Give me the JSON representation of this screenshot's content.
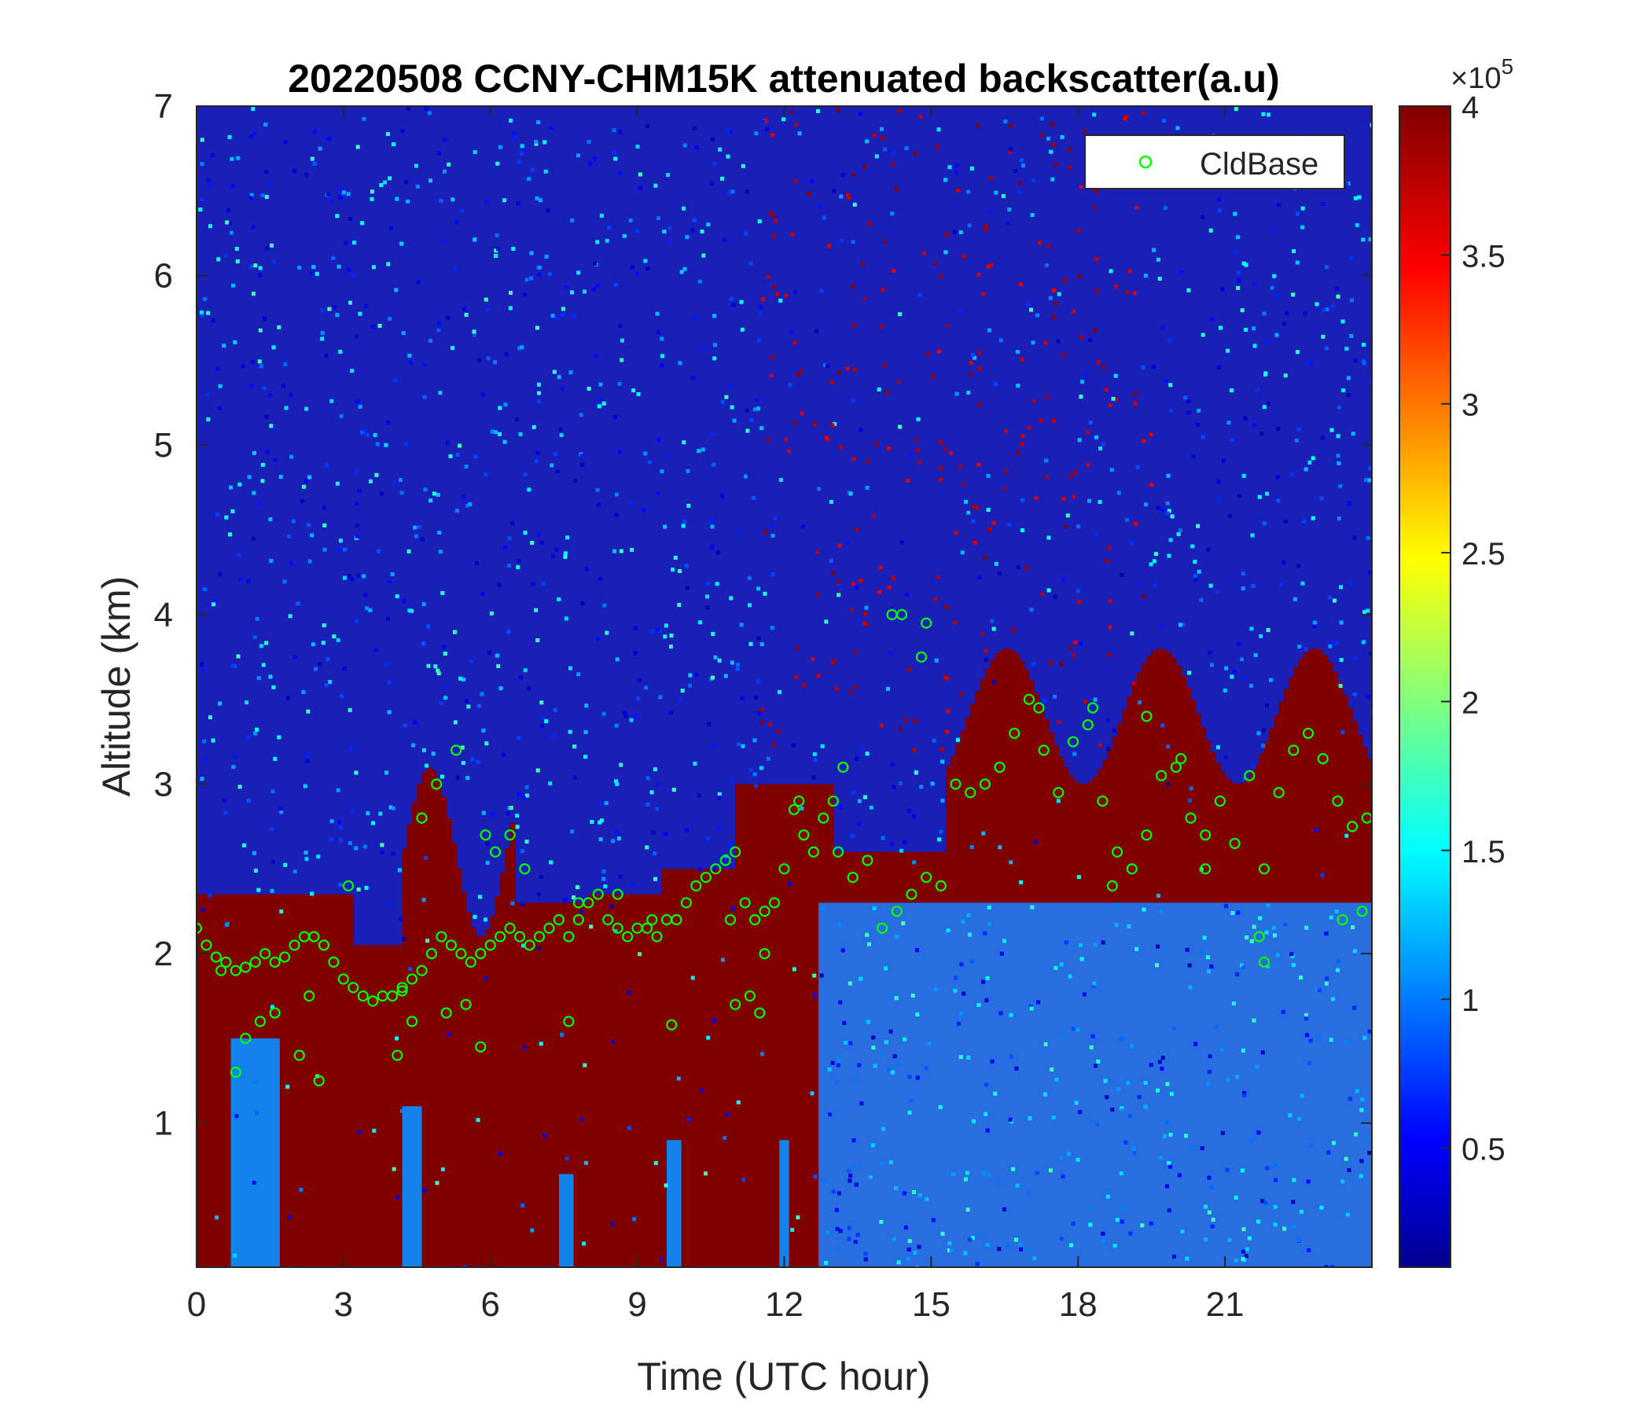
{
  "chart_data": {
    "type": "heatmap",
    "title": "20220508 CCNY-CHM15K attenuated backscatter(a.u)",
    "xlabel": "Time (UTC hour)",
    "ylabel": "Altitude (km)",
    "xlim": [
      0,
      24
    ],
    "ylim": [
      0.15,
      7
    ],
    "xticks": [
      0,
      3,
      6,
      9,
      12,
      15,
      18,
      21
    ],
    "yticks": [
      1,
      2,
      3,
      4,
      5,
      6,
      7
    ],
    "colorbar": {
      "colormap": "jet",
      "clim": [
        0.1,
        4
      ],
      "ticks": [
        0.5,
        1,
        1.5,
        2,
        2.5,
        3,
        3.5,
        4
      ],
      "multiplier_base": "×10",
      "multiplier_exp": "5"
    },
    "legend": {
      "location": "top-right",
      "entries": [
        "CldBase"
      ]
    },
    "series": [
      {
        "name": "CldBase",
        "type": "scatter",
        "marker": "circle-open",
        "color": "#00ff00",
        "x": [
          0.0,
          0.2,
          0.4,
          0.6,
          0.8,
          1.0,
          1.2,
          1.4,
          1.6,
          1.8,
          2.0,
          2.2,
          2.4,
          2.6,
          2.8,
          3.0,
          3.2,
          3.4,
          3.6,
          3.8,
          4.0,
          4.2,
          4.4,
          4.6,
          4.8,
          5.0,
          5.2,
          5.4,
          5.6,
          5.8,
          6.0,
          6.2,
          6.4,
          6.6,
          6.8,
          7.0,
          7.2,
          7.4,
          7.6,
          7.8,
          8.0,
          8.2,
          8.4,
          8.6,
          8.8,
          9.0,
          9.2,
          9.4,
          9.6,
          9.8,
          10.0,
          10.2,
          10.4,
          10.6,
          10.8,
          11.0,
          11.2,
          11.4,
          11.6,
          11.8,
          12.0,
          12.2,
          12.4,
          12.6,
          12.8,
          13.0,
          13.2,
          13.4,
          13.7,
          14.0,
          14.3,
          14.6,
          14.9,
          15.2,
          15.5,
          15.8,
          16.1,
          16.4,
          16.7,
          17.0,
          17.3,
          17.6,
          17.9,
          18.2,
          18.5,
          18.8,
          19.1,
          19.4,
          19.7,
          20.0,
          20.3,
          20.6,
          20.9,
          21.2,
          21.5,
          21.8,
          22.1,
          22.4,
          22.7,
          23.0,
          23.3,
          23.6,
          23.9,
          1.0,
          1.3,
          0.8,
          2.1,
          2.5,
          4.1,
          4.4,
          5.1,
          5.5,
          5.8,
          4.6,
          4.9,
          5.3,
          6.1,
          6.4,
          7.6,
          9.7,
          11.0,
          11.3,
          11.5,
          14.2,
          14.4,
          14.8,
          14.9,
          17.2,
          18.3,
          18.7,
          19.4,
          20.1,
          20.6,
          21.7,
          21.8,
          23.4,
          23.8,
          0.5,
          1.6,
          2.3,
          3.1,
          4.2,
          5.9,
          6.7,
          7.8,
          8.6,
          9.3,
          10.9,
          11.6,
          12.3,
          13.1
        ],
        "y": [
          2.15,
          2.05,
          1.98,
          1.95,
          1.9,
          1.92,
          1.95,
          2.0,
          1.95,
          1.98,
          2.05,
          2.1,
          2.1,
          2.05,
          1.95,
          1.85,
          1.8,
          1.75,
          1.72,
          1.75,
          1.75,
          1.78,
          1.85,
          1.9,
          2.0,
          2.1,
          2.05,
          2.0,
          1.95,
          2.0,
          2.05,
          2.1,
          2.15,
          2.1,
          2.05,
          2.1,
          2.15,
          2.2,
          2.1,
          2.2,
          2.3,
          2.35,
          2.2,
          2.15,
          2.1,
          2.15,
          2.15,
          2.1,
          2.2,
          2.2,
          2.3,
          2.4,
          2.45,
          2.5,
          2.55,
          2.6,
          2.3,
          2.2,
          2.25,
          2.3,
          2.5,
          2.85,
          2.7,
          2.6,
          2.8,
          2.9,
          3.1,
          2.45,
          2.55,
          2.15,
          2.25,
          2.35,
          2.45,
          2.4,
          3.0,
          2.95,
          3.0,
          3.1,
          3.3,
          3.5,
          3.2,
          2.95,
          3.25,
          3.35,
          2.9,
          2.6,
          2.5,
          2.7,
          3.05,
          3.1,
          2.8,
          2.7,
          2.9,
          2.65,
          3.05,
          2.5,
          2.95,
          3.2,
          3.3,
          3.15,
          2.9,
          2.75,
          2.8,
          1.5,
          1.6,
          1.3,
          1.4,
          1.25,
          1.4,
          1.6,
          1.65,
          1.7,
          1.45,
          2.8,
          3.0,
          3.2,
          2.6,
          2.7,
          1.6,
          1.58,
          1.7,
          1.75,
          1.65,
          4.0,
          4.0,
          3.75,
          3.95,
          3.45,
          3.45,
          2.4,
          3.4,
          3.15,
          2.5,
          2.1,
          1.95,
          2.2,
          2.25,
          1.9,
          1.65,
          1.75,
          2.4,
          1.8,
          2.7,
          2.5,
          2.3,
          2.35,
          2.2,
          2.2,
          2.0,
          2.9,
          2.6
        ]
      }
    ]
  }
}
